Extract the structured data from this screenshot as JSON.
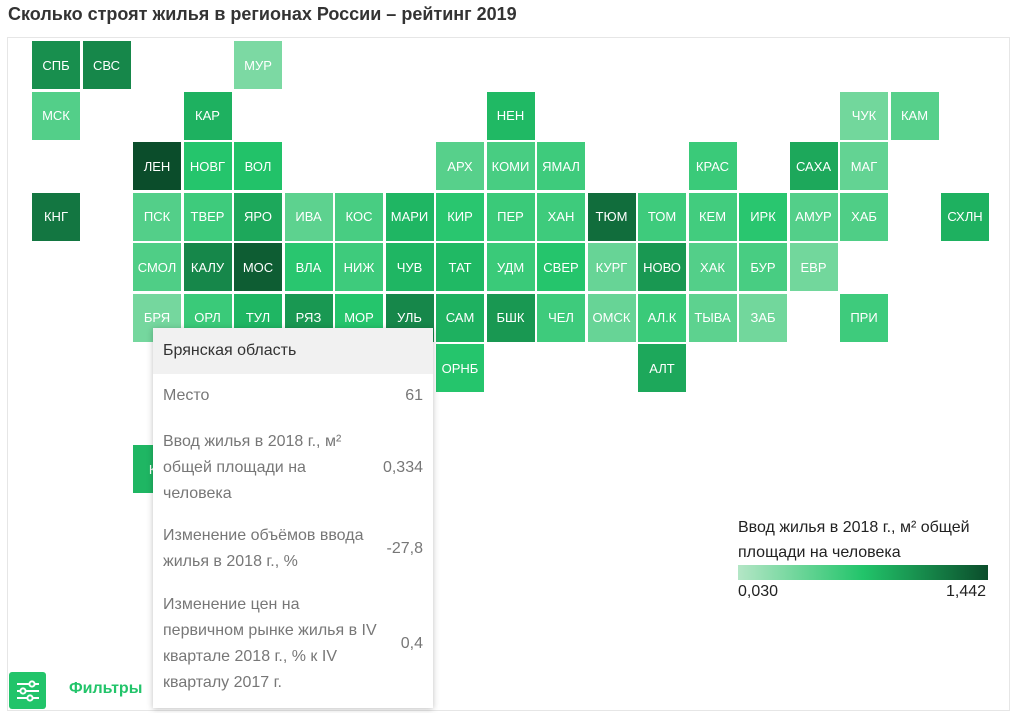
{
  "title": "Сколько строят жилья в регионах России – рейтинг 2019",
  "colors": {
    "accent": "#22c46a",
    "scale_low": "#b4e6c6",
    "scale_high": "#0b4d2b"
  },
  "regions": [
    {
      "code": "СПБ",
      "value": 1.05
    },
    {
      "code": "СВС",
      "value": 1.1
    },
    {
      "code": "МУР",
      "value": 0.3
    },
    {
      "code": "МСК",
      "value": 0.5
    },
    {
      "code": "КАР",
      "value": 0.85
    },
    {
      "code": "НЕН",
      "value": 0.8
    },
    {
      "code": "ЧУК",
      "value": 0.35
    },
    {
      "code": "КАМ",
      "value": 0.48
    },
    {
      "code": "ЛЕН",
      "value": 1.442
    },
    {
      "code": "НОВГ",
      "value": 0.72
    },
    {
      "code": "ВОЛ",
      "value": 0.75
    },
    {
      "code": "АРХ",
      "value": 0.48
    },
    {
      "code": "КОМИ",
      "value": 0.55
    },
    {
      "code": "ЯМАЛ",
      "value": 0.6
    },
    {
      "code": "КРАС",
      "value": 0.62
    },
    {
      "code": "САХА",
      "value": 0.9
    },
    {
      "code": "МАГ",
      "value": 0.42
    },
    {
      "code": "КНГ",
      "value": 1.2
    },
    {
      "code": "ПСК",
      "value": 0.5
    },
    {
      "code": "ТВЕР",
      "value": 0.6
    },
    {
      "code": "ЯРО",
      "value": 0.9
    },
    {
      "code": "ИВА",
      "value": 0.45
    },
    {
      "code": "КОС",
      "value": 0.55
    },
    {
      "code": "МАРИ",
      "value": 0.82
    },
    {
      "code": "КИР",
      "value": 0.7
    },
    {
      "code": "ПЕР",
      "value": 0.62
    },
    {
      "code": "ХАН",
      "value": 0.6
    },
    {
      "code": "ТЮМ",
      "value": 1.25
    },
    {
      "code": "ТОМ",
      "value": 0.6
    },
    {
      "code": "КЕМ",
      "value": 0.58
    },
    {
      "code": "ИРК",
      "value": 0.7
    },
    {
      "code": "АМУР",
      "value": 0.5
    },
    {
      "code": "ХАБ",
      "value": 0.52
    },
    {
      "code": "СХЛН",
      "value": 0.85
    },
    {
      "code": "СМОЛ",
      "value": 0.52
    },
    {
      "code": "КАЛУ",
      "value": 1.1
    },
    {
      "code": "МОС",
      "value": 1.35
    },
    {
      "code": "ВЛА",
      "value": 0.7
    },
    {
      "code": "НИЖ",
      "value": 0.6
    },
    {
      "code": "ЧУВ",
      "value": 0.82
    },
    {
      "code": "ТАТ",
      "value": 0.8
    },
    {
      "code": "УДМ",
      "value": 0.62
    },
    {
      "code": "СВЕР",
      "value": 0.72
    },
    {
      "code": "КУРГ",
      "value": 0.4
    },
    {
      "code": "НОВО",
      "value": 1.0
    },
    {
      "code": "ХАК",
      "value": 0.5
    },
    {
      "code": "БУР",
      "value": 0.55
    },
    {
      "code": "ЕВР",
      "value": 0.35
    },
    {
      "code": "БРЯ",
      "value": 0.334
    },
    {
      "code": "ОРЛ",
      "value": 0.62
    },
    {
      "code": "ТУЛ",
      "value": 0.82
    },
    {
      "code": "РЯЗ",
      "value": 1.0
    },
    {
      "code": "МОР",
      "value": 0.72
    },
    {
      "code": "УЛЬ",
      "value": 1.1
    },
    {
      "code": "САМ",
      "value": 0.85
    },
    {
      "code": "БШК",
      "value": 1.0
    },
    {
      "code": "ЧЕЛ",
      "value": 0.6
    },
    {
      "code": "ОМСК",
      "value": 0.4
    },
    {
      "code": "АЛ.К",
      "value": 0.62
    },
    {
      "code": "ТЫВА",
      "value": 0.45
    },
    {
      "code": "ЗАБ",
      "value": 0.35
    },
    {
      "code": "ПРИ",
      "value": 0.6
    },
    {
      "code": "ОРНБ",
      "value": 0.72
    },
    {
      "code": "АЛТ",
      "value": 0.9
    },
    {
      "code": "КР",
      "value": 0.82
    }
  ],
  "tooltip": {
    "region": "Брянская область",
    "rows": [
      {
        "label": "Место",
        "value": "61"
      },
      {
        "label": "Ввод жилья в 2018 г., м² общей площади на человека",
        "value": "0,334"
      },
      {
        "label": "Изменение объёмов ввода жилья в 2018 г., %",
        "value": "-27,8"
      },
      {
        "label": "Изменение цен на первичном рынке жилья в IV квартале 2018 г., % к IV кварталу 2017 г.",
        "value": "0,4"
      }
    ]
  },
  "legend": {
    "title": "Ввод жилья в 2018 г., м² общей площади на человека",
    "min": "0,030",
    "max": "1,442",
    "min_value": 0.03,
    "max_value": 1.442
  },
  "filters_label": "Фильтры"
}
